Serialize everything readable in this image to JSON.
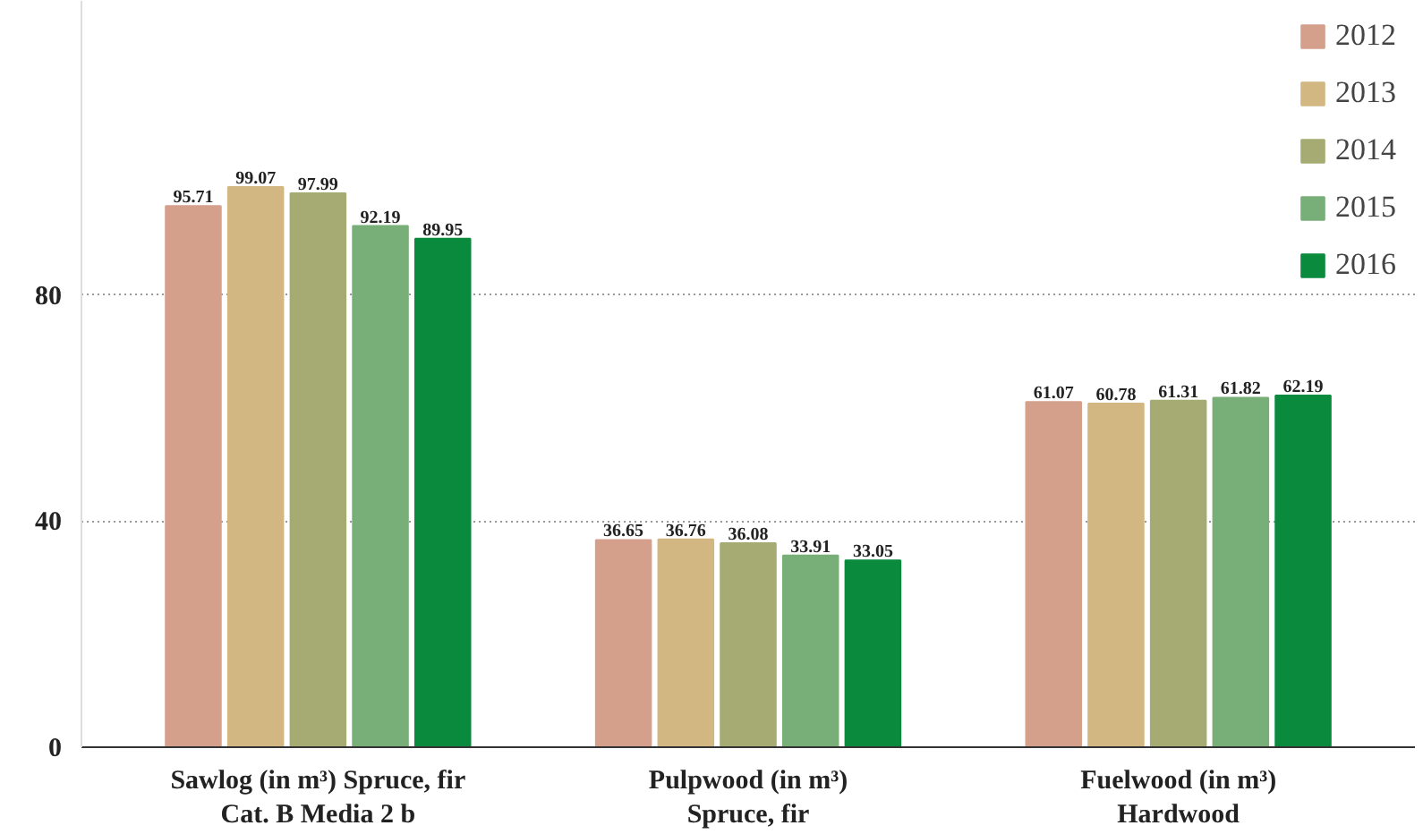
{
  "chart_data": {
    "type": "bar",
    "categories": [
      "Sawlog (in m³) Spruce, fir\nCat. B Media 2 b",
      "Pulpwood (in m³)\nSpruce, fir",
      "Fuelwood (in m³)\nHardwood"
    ],
    "series": [
      {
        "name": "2012",
        "color": "#d4a08c",
        "values": [
          95.71,
          36.65,
          61.07
        ]
      },
      {
        "name": "2013",
        "color": "#d2b783",
        "values": [
          99.07,
          36.76,
          60.78
        ]
      },
      {
        "name": "2014",
        "color": "#a5ab72",
        "values": [
          97.99,
          36.08,
          61.31
        ]
      },
      {
        "name": "2015",
        "color": "#78ae78",
        "values": [
          92.19,
          33.91,
          61.82
        ]
      },
      {
        "name": "2016",
        "color": "#0a8a3c",
        "values": [
          89.95,
          33.05,
          62.19
        ]
      }
    ],
    "ylim": [
      0,
      132
    ],
    "yticks": [
      0,
      40,
      80
    ],
    "grid": "y",
    "legend": "top right",
    "data_labels": true
  }
}
